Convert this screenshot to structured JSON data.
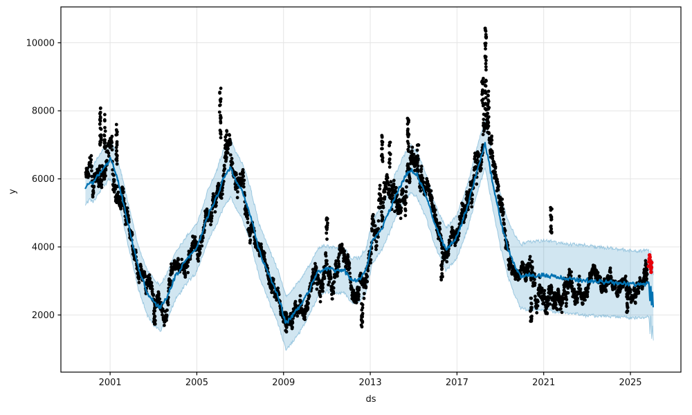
{
  "figure": {
    "background": "#ffffff"
  },
  "chart_data": {
    "type": "line",
    "title": "",
    "xlabel": "ds",
    "ylabel": "y",
    "grid": true,
    "legend": "none",
    "x_ticks": [
      2001,
      2005,
      2009,
      2013,
      2017,
      2021,
      2025
    ],
    "y_ticks": [
      2000,
      4000,
      6000,
      8000,
      10000
    ],
    "x_range": [
      1998.73,
      2027.33
    ],
    "y_range": [
      321,
      11053
    ],
    "colors": {
      "forecast_line": "#0072B2",
      "band_fill": "#0072B2",
      "band_fill_alpha": 0.18,
      "band_edge_alpha": 0.32,
      "observations": "#000000",
      "recent_points": "#e8000b",
      "grid": "#e4e4e4",
      "spine": "#000000",
      "text": "#111111"
    },
    "series": [
      {
        "name": "forecast_trend_yhat",
        "points": [
          [
            1999.86,
            5730
          ],
          [
            2000.05,
            5930
          ],
          [
            2000.2,
            5850
          ],
          [
            2000.45,
            6100
          ],
          [
            2000.7,
            6350
          ],
          [
            2001.0,
            6580
          ],
          [
            2001.2,
            6300
          ],
          [
            2001.5,
            5600
          ],
          [
            2001.9,
            4500
          ],
          [
            2002.3,
            3400
          ],
          [
            2002.75,
            2600
          ],
          [
            2003.05,
            2350
          ],
          [
            2003.3,
            2215
          ],
          [
            2003.6,
            2500
          ],
          [
            2004.0,
            3130
          ],
          [
            2004.5,
            3600
          ],
          [
            2005.0,
            3960
          ],
          [
            2005.5,
            4900
          ],
          [
            2005.95,
            5500
          ],
          [
            2006.25,
            6050
          ],
          [
            2006.55,
            6320
          ],
          [
            2006.8,
            5950
          ],
          [
            2007.1,
            5640
          ],
          [
            2007.45,
            5000
          ],
          [
            2007.9,
            3850
          ],
          [
            2008.4,
            3050
          ],
          [
            2008.8,
            2450
          ],
          [
            2009.1,
            1760
          ],
          [
            2009.4,
            1980
          ],
          [
            2009.8,
            2300
          ],
          [
            2010.2,
            2750
          ],
          [
            2010.6,
            3270
          ],
          [
            2011.0,
            3360
          ],
          [
            2011.4,
            3300
          ],
          [
            2011.8,
            3330
          ],
          [
            2012.15,
            3000
          ],
          [
            2012.5,
            3040
          ],
          [
            2012.8,
            3300
          ],
          [
            2013.1,
            4150
          ],
          [
            2013.6,
            4620
          ],
          [
            2014.1,
            5400
          ],
          [
            2014.5,
            5950
          ],
          [
            2014.85,
            6280
          ],
          [
            2015.15,
            6150
          ],
          [
            2015.6,
            5450
          ],
          [
            2016.0,
            4620
          ],
          [
            2016.5,
            3920
          ],
          [
            2017.0,
            4320
          ],
          [
            2017.5,
            5200
          ],
          [
            2017.9,
            6200
          ],
          [
            2018.3,
            7030
          ],
          [
            2018.6,
            6050
          ],
          [
            2019.0,
            4800
          ],
          [
            2019.35,
            3950
          ],
          [
            2019.7,
            3400
          ],
          [
            2019.95,
            3140
          ],
          [
            2020.5,
            3170
          ],
          [
            2021.2,
            3160
          ],
          [
            2022.0,
            3070
          ],
          [
            2023.0,
            3010
          ],
          [
            2024.0,
            2960
          ],
          [
            2025.0,
            2910
          ],
          [
            2025.55,
            2890
          ],
          [
            2025.85,
            2960
          ],
          [
            2025.9,
            2450
          ],
          [
            2025.94,
            2900
          ],
          [
            2025.98,
            2250
          ],
          [
            2026.02,
            2700
          ],
          [
            2026.06,
            2160
          ]
        ]
      },
      {
        "name": "uncertainty_halfwidth",
        "points": [
          [
            1999.86,
            520
          ],
          [
            2001.0,
            570
          ],
          [
            2003.0,
            680
          ],
          [
            2005.0,
            700
          ],
          [
            2006.5,
            860
          ],
          [
            2008.0,
            760
          ],
          [
            2009.1,
            800
          ],
          [
            2010.5,
            700
          ],
          [
            2012.0,
            660
          ],
          [
            2013.6,
            620
          ],
          [
            2014.85,
            690
          ],
          [
            2016.0,
            620
          ],
          [
            2017.0,
            630
          ],
          [
            2018.3,
            710
          ],
          [
            2019.3,
            820
          ],
          [
            2020.2,
            990
          ],
          [
            2021.0,
            1020
          ],
          [
            2023.0,
            1020
          ],
          [
            2025.0,
            990
          ],
          [
            2026.06,
            980
          ]
        ]
      },
      {
        "name": "observation_spread_envelope",
        "points": [
          [
            1999.9,
            800
          ],
          [
            2000.6,
            1400
          ],
          [
            2001.5,
            1050
          ],
          [
            2002.5,
            700
          ],
          [
            2003.5,
            680
          ],
          [
            2004.5,
            600
          ],
          [
            2005.5,
            800
          ],
          [
            2006.2,
            1400
          ],
          [
            2007.1,
            900
          ],
          [
            2008.0,
            650
          ],
          [
            2009.1,
            520
          ],
          [
            2010.0,
            700
          ],
          [
            2011.0,
            1150
          ],
          [
            2012.0,
            800
          ],
          [
            2012.7,
            1100
          ],
          [
            2013.6,
            1500
          ],
          [
            2014.8,
            1250
          ],
          [
            2015.5,
            850
          ],
          [
            2016.3,
            900
          ],
          [
            2017.2,
            820
          ],
          [
            2018.3,
            1500
          ],
          [
            2019.0,
            1000
          ],
          [
            2019.8,
            700
          ],
          [
            2020.4,
            1050
          ],
          [
            2021.4,
            1400
          ],
          [
            2022.2,
            950
          ],
          [
            2023.0,
            820
          ],
          [
            2024.0,
            720
          ],
          [
            2024.8,
            850
          ],
          [
            2025.4,
            620
          ],
          [
            2025.78,
            560
          ]
        ]
      },
      {
        "name": "observed_extreme_clusters",
        "clusters": [
          {
            "t": 2000.55,
            "top": 8100,
            "bottom": 6900,
            "count": 26
          },
          {
            "t": 2000.75,
            "top": 7900,
            "bottom": 6700,
            "count": 18
          },
          {
            "t": 2001.3,
            "top": 7620,
            "bottom": 6400,
            "count": 20
          },
          {
            "t": 2006.08,
            "top": 8700,
            "bottom": 7200,
            "count": 22
          },
          {
            "t": 2006.35,
            "top": 7500,
            "bottom": 6600,
            "count": 14
          },
          {
            "t": 2011.0,
            "top": 4850,
            "bottom": 4200,
            "count": 14
          },
          {
            "t": 2013.55,
            "top": 7420,
            "bottom": 6500,
            "count": 16
          },
          {
            "t": 2013.9,
            "top": 7100,
            "bottom": 6300,
            "count": 12
          },
          {
            "t": 2014.75,
            "top": 7800,
            "bottom": 6800,
            "count": 20
          },
          {
            "t": 2015.2,
            "top": 7000,
            "bottom": 6200,
            "count": 10
          },
          {
            "t": 2018.18,
            "top": 9100,
            "bottom": 8100,
            "count": 14
          },
          {
            "t": 2018.32,
            "top": 10450,
            "bottom": 8200,
            "count": 30
          },
          {
            "t": 2018.45,
            "top": 8600,
            "bottom": 7600,
            "count": 12
          },
          {
            "t": 2021.35,
            "top": 5200,
            "bottom": 4300,
            "count": 16
          },
          {
            "t": 2003.05,
            "top": 2300,
            "bottom": 1700,
            "count": 16
          },
          {
            "t": 2009.12,
            "top": 2100,
            "bottom": 1480,
            "count": 20
          },
          {
            "t": 2012.62,
            "top": 2350,
            "bottom": 1580,
            "count": 16
          },
          {
            "t": 2016.3,
            "top": 3600,
            "bottom": 3000,
            "count": 12
          },
          {
            "t": 2020.42,
            "top": 2500,
            "bottom": 1780,
            "count": 18
          },
          {
            "t": 2024.85,
            "top": 2650,
            "bottom": 2060,
            "count": 16
          },
          {
            "t": 2025.72,
            "top": 3600,
            "bottom": 2900,
            "count": 16
          }
        ]
      },
      {
        "name": "recent_actuals_red",
        "points": [
          [
            2025.84,
            3430
          ],
          [
            2025.855,
            3560
          ],
          [
            2025.87,
            3650
          ],
          [
            2025.885,
            3760
          ],
          [
            2025.9,
            3700
          ],
          [
            2025.915,
            3600
          ],
          [
            2025.93,
            3470
          ],
          [
            2025.945,
            3350
          ],
          [
            2025.955,
            3260
          ],
          [
            2025.97,
            3400
          ],
          [
            2025.98,
            3540
          ]
        ]
      }
    ],
    "observations_cloud": {
      "t_start": 1999.88,
      "t_end": 2025.78,
      "points_per_year": 120,
      "seed": 7
    }
  }
}
